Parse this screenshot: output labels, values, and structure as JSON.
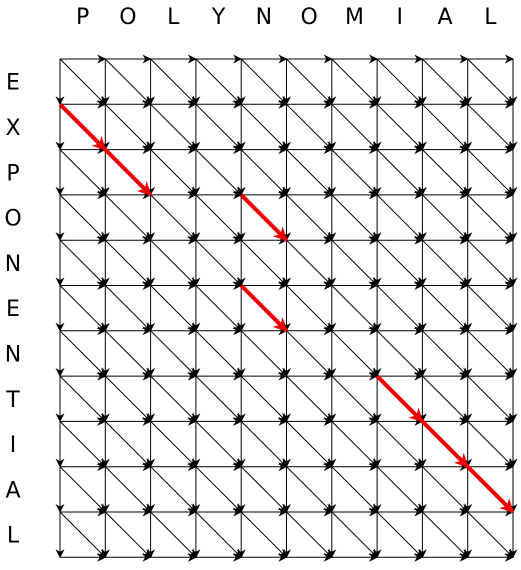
{
  "top_word": [
    "P",
    "O",
    "L",
    "Y",
    "N",
    "O",
    "M",
    "I",
    "A",
    "L"
  ],
  "side_word": [
    "E",
    "X",
    "P",
    "O",
    "N",
    "E",
    "N",
    "T",
    "I",
    "A",
    "L"
  ],
  "grid": {
    "columns": 10,
    "rows": 11
  },
  "colors": {
    "grid": "#000000",
    "highlight": "#ee0000"
  },
  "highlight_path": [
    {
      "col": 0,
      "row": 1
    },
    {
      "col": 1,
      "row": 2
    },
    {
      "col": 2,
      "row": 3
    },
    {
      "col": 4,
      "row": 3
    },
    {
      "col": 5,
      "row": 4
    },
    {
      "col": 4,
      "row": 5
    },
    {
      "col": 5,
      "row": 6
    },
    {
      "col": 7,
      "row": 7
    },
    {
      "col": 8,
      "row": 8
    },
    {
      "col": 9,
      "row": 9
    },
    {
      "col": 10,
      "row": 10
    }
  ]
}
